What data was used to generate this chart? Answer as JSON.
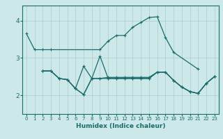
{
  "xlabel": "Humidex (Indice chaleur)",
  "xlim": [
    -0.5,
    23.5
  ],
  "ylim": [
    1.5,
    4.4
  ],
  "yticks": [
    2,
    3,
    4
  ],
  "xticks": [
    0,
    1,
    2,
    3,
    4,
    5,
    6,
    7,
    8,
    9,
    10,
    11,
    12,
    13,
    14,
    15,
    16,
    17,
    18,
    19,
    20,
    21,
    22,
    23
  ],
  "bg_color": "#cce8e8",
  "grid_color": "#aacccc",
  "line_color": "#1a6b6b",
  "series": {
    "line1": {
      "x": [
        0,
        1,
        2,
        3,
        9,
        10,
        11,
        12,
        13,
        14,
        15,
        16,
        17,
        18,
        21
      ],
      "y": [
        3.65,
        3.22,
        3.22,
        3.22,
        3.22,
        3.45,
        3.6,
        3.6,
        3.82,
        3.95,
        4.08,
        4.1,
        3.55,
        3.15,
        2.7
      ]
    },
    "line2": {
      "x": [
        2,
        3,
        4,
        5,
        6,
        7,
        8,
        9,
        10,
        11,
        12,
        13,
        14,
        15,
        16,
        17,
        18,
        19,
        20,
        21,
        22,
        23
      ],
      "y": [
        2.65,
        2.65,
        2.45,
        2.42,
        2.18,
        2.78,
        2.45,
        2.45,
        2.48,
        2.48,
        2.48,
        2.48,
        2.48,
        2.48,
        2.62,
        2.62,
        2.4,
        2.22,
        2.1,
        2.05,
        2.32,
        2.5
      ]
    },
    "line3": {
      "x": [
        2,
        3,
        4,
        5,
        6,
        7,
        8,
        9,
        10,
        11,
        12,
        13,
        14,
        15,
        16,
        17,
        18,
        19,
        20,
        21,
        22,
        23
      ],
      "y": [
        2.65,
        2.65,
        2.45,
        2.42,
        2.18,
        2.02,
        2.45,
        3.05,
        2.45,
        2.45,
        2.45,
        2.45,
        2.45,
        2.45,
        2.62,
        2.62,
        2.4,
        2.22,
        2.1,
        2.05,
        2.32,
        2.5
      ]
    },
    "line4": {
      "x": [
        2,
        3,
        4,
        5,
        6,
        7,
        8,
        9,
        10,
        11,
        12,
        13,
        14,
        15,
        16,
        17,
        18,
        19,
        20,
        21,
        22,
        23
      ],
      "y": [
        2.65,
        2.65,
        2.45,
        2.42,
        2.18,
        2.02,
        2.45,
        2.45,
        2.45,
        2.45,
        2.45,
        2.45,
        2.45,
        2.45,
        2.62,
        2.62,
        2.4,
        2.22,
        2.1,
        2.05,
        2.32,
        2.5
      ]
    }
  }
}
